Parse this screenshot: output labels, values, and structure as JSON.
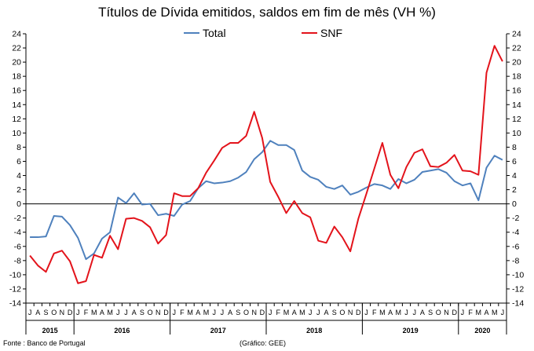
{
  "chart_data": {
    "type": "line",
    "title": "Títulos de Dívida emitidos, saldos em fim de mês  (VH %)",
    "ylim": [
      -14,
      24
    ],
    "yticks": [
      -14,
      -12,
      -10,
      -8,
      -6,
      -4,
      -2,
      0,
      2,
      4,
      6,
      8,
      10,
      12,
      14,
      16,
      18,
      20,
      22,
      24
    ],
    "x": [
      "J",
      "A",
      "S",
      "O",
      "N",
      "D",
      "J",
      "F",
      "M",
      "A",
      "M",
      "J",
      "J",
      "A",
      "S",
      "O",
      "N",
      "D",
      "J",
      "F",
      "M",
      "A",
      "M",
      "J",
      "J",
      "A",
      "S",
      "O",
      "N",
      "D",
      "J",
      "F",
      "M",
      "A",
      "M",
      "J",
      "J",
      "A",
      "S",
      "O",
      "N",
      "D",
      "J",
      "F",
      "M",
      "A",
      "M",
      "J",
      "J",
      "A",
      "S",
      "O",
      "N",
      "D",
      "J",
      "F",
      "M",
      "A",
      "M",
      "J"
    ],
    "years": [
      {
        "label": "2015",
        "start": 0,
        "end": 6
      },
      {
        "label": "2016",
        "start": 6,
        "end": 18
      },
      {
        "label": "2017",
        "start": 18,
        "end": 30
      },
      {
        "label": "2018",
        "start": 30,
        "end": 42
      },
      {
        "label": "2019",
        "start": 42,
        "end": 54
      },
      {
        "label": "2020",
        "start": 54,
        "end": 60
      }
    ],
    "series": [
      {
        "name": "Total",
        "color": "#4F81BD",
        "values": [
          -4.7,
          -4.7,
          -4.6,
          -1.7,
          -1.8,
          -3.0,
          -4.8,
          -7.8,
          -7.0,
          -4.9,
          -4.0,
          0.9,
          0.1,
          1.5,
          -0.1,
          0.0,
          -1.6,
          -1.4,
          -1.7,
          -0.1,
          0.4,
          2.2,
          3.2,
          2.9,
          3.0,
          3.2,
          3.7,
          4.5,
          6.3,
          7.3,
          8.9,
          8.3,
          8.3,
          7.6,
          4.7,
          3.8,
          3.4,
          2.4,
          2.1,
          2.6,
          1.3,
          1.7,
          2.3,
          2.8,
          2.6,
          2.1,
          3.5,
          2.9,
          3.4,
          4.5,
          4.7,
          4.9,
          4.4,
          3.2,
          2.6,
          2.9,
          0.5,
          5.1,
          6.8,
          6.2
        ]
      },
      {
        "name": "SNF",
        "color": "#E3131B",
        "values": [
          -7.3,
          -8.7,
          -9.6,
          -7.0,
          -6.6,
          -8.1,
          -11.2,
          -10.9,
          -7.2,
          -7.6,
          -4.5,
          -6.4,
          -2.1,
          -2.0,
          -2.4,
          -3.3,
          -5.6,
          -4.4,
          1.5,
          1.1,
          1.1,
          2.2,
          4.4,
          6.1,
          7.9,
          8.6,
          8.6,
          9.6,
          13.0,
          9.3,
          3.1,
          1.0,
          -1.3,
          0.4,
          -1.3,
          -1.9,
          -5.2,
          -5.5,
          -3.2,
          -4.7,
          -6.7,
          -2.1,
          1.4,
          5.0,
          8.6,
          4.1,
          2.2,
          5.2,
          7.2,
          7.7,
          5.3,
          5.2,
          5.8,
          6.9,
          4.7,
          4.6,
          4.1,
          18.5,
          22.3,
          20.1
        ]
      }
    ]
  },
  "legend": {
    "total_label": "Total",
    "snf_label": "SNF"
  },
  "footer": {
    "source": "Fonte : Banco de Portugal",
    "credit": "(Gráfico: GEE)"
  }
}
